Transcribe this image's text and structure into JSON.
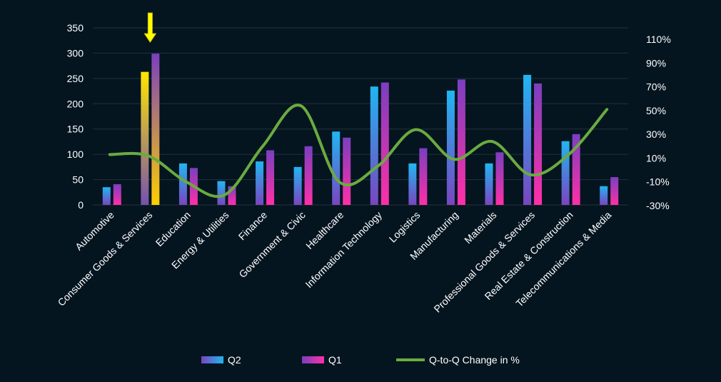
{
  "chart_data": {
    "type": "bar",
    "categories": [
      "Automotive",
      "Consumer Goods & Services",
      "Education",
      "Energy & Utilities",
      "Finance",
      "Government & Civic",
      "Healthcare",
      "Information Technology",
      "Logistics",
      "Manufacturing",
      "Materials",
      "Professional Goods & Services",
      "Real Estate & Construction",
      "Telecommunications & Media"
    ],
    "series": [
      {
        "name": "Q2",
        "type": "bar",
        "axis": "left",
        "values": [
          35,
          263,
          82,
          47,
          86,
          75,
          145,
          234,
          82,
          226,
          82,
          257,
          126,
          37
        ]
      },
      {
        "name": "Q1",
        "type": "bar",
        "axis": "left",
        "values": [
          41,
          299,
          73,
          37,
          108,
          116,
          133,
          242,
          112,
          248,
          104,
          240,
          140,
          55
        ]
      },
      {
        "name": "Q-to-Q Change in %",
        "type": "line",
        "axis": "right",
        "values": [
          13,
          12,
          -10,
          -21,
          20,
          54,
          -10,
          3,
          34,
          9,
          24,
          -4,
          13,
          51
        ]
      }
    ],
    "y_left": {
      "ticks": [
        0,
        50,
        100,
        150,
        200,
        250,
        300,
        350
      ],
      "lim": [
        0,
        350
      ]
    },
    "y_right": {
      "tick_labels": [
        "-30%",
        "-10%",
        "10%",
        "30%",
        "50%",
        "70%",
        "90%",
        "110%"
      ],
      "lim": [
        -30,
        110
      ]
    },
    "highlight_category": 1,
    "grid": true,
    "legend_position": "bottom",
    "colors": {
      "background": "#041520",
      "q2_bar_top": "#20b6f2",
      "q2_bar_bottom": "#7a45c0",
      "q1_bar_top": "#7b3fbf",
      "q1_bar_bottom": "#ff2fa8",
      "line": "#6aab3f",
      "highlight_top": "#ffe600",
      "highlight_bottom": "#7650b0",
      "arrow": "#ffff00",
      "text": "#ffffff"
    }
  }
}
